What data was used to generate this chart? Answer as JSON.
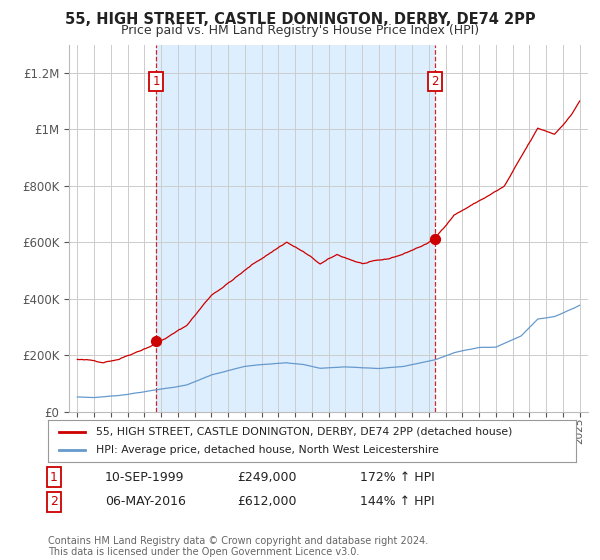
{
  "title": "55, HIGH STREET, CASTLE DONINGTON, DERBY, DE74 2PP",
  "subtitle": "Price paid vs. HM Land Registry's House Price Index (HPI)",
  "title_fontsize": 10.5,
  "subtitle_fontsize": 9,
  "background_color": "#ffffff",
  "plot_bg_color": "#ffffff",
  "shade_color": "#ddeeff",
  "grid_color": "#cccccc",
  "red_color": "#cc0000",
  "blue_color": "#6699cc",
  "purchase1_x": 1999.7,
  "purchase1_y": 249000,
  "purchase2_x": 2016.35,
  "purchase2_y": 612000,
  "ylim": [
    0,
    1300000
  ],
  "yticks": [
    0,
    200000,
    400000,
    600000,
    800000,
    1000000,
    1200000
  ],
  "ytick_labels": [
    "£0",
    "£200K",
    "£400K",
    "£600K",
    "£800K",
    "£1M",
    "£1.2M"
  ],
  "xlim_start": 1994.5,
  "xlim_end": 2025.5,
  "xticks": [
    1995,
    1996,
    1997,
    1998,
    1999,
    2000,
    2001,
    2002,
    2003,
    2004,
    2005,
    2006,
    2007,
    2008,
    2009,
    2010,
    2011,
    2012,
    2013,
    2014,
    2015,
    2016,
    2017,
    2018,
    2019,
    2020,
    2021,
    2022,
    2023,
    2024,
    2025
  ],
  "legend_label_red": "55, HIGH STREET, CASTLE DONINGTON, DERBY, DE74 2PP (detached house)",
  "legend_label_blue": "HPI: Average price, detached house, North West Leicestershire",
  "table_rows": [
    {
      "num": "1",
      "date": "10-SEP-1999",
      "price": "£249,000",
      "hpi": "172% ↑ HPI"
    },
    {
      "num": "2",
      "date": "06-MAY-2016",
      "price": "£612,000",
      "hpi": "144% ↑ HPI"
    }
  ],
  "footer": "Contains HM Land Registry data © Crown copyright and database right 2024.\nThis data is licensed under the Open Government Licence v3.0."
}
